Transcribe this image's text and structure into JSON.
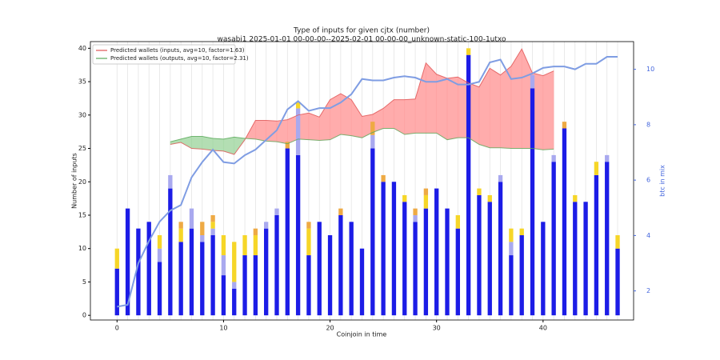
{
  "chart_data": {
    "type": "bar",
    "title": "Type of inputs for given cjtx (number)",
    "subtitle": "wasabi1 2025-01-01 00-00-00--2025-02-01 00-00-00_unknown-static-100-1utxo",
    "x_label": "Coinjoin in time",
    "y_label": "Number of inputs",
    "y2_label": "btc in mix",
    "x": [
      0,
      1,
      2,
      3,
      4,
      5,
      6,
      7,
      8,
      9,
      10,
      11,
      12,
      13,
      14,
      15,
      16,
      17,
      18,
      19,
      20,
      21,
      22,
      23,
      24,
      25,
      26,
      27,
      28,
      29,
      30,
      31,
      32,
      33,
      34,
      35,
      36,
      37,
      38,
      39,
      40,
      41,
      42,
      43,
      44,
      45,
      46,
      47
    ],
    "xlim": [
      -2.5,
      48.5
    ],
    "xticks": [
      0,
      10,
      20,
      30,
      40
    ],
    "ylim": [
      -0.7,
      41
    ],
    "yticks": [
      0,
      5,
      10,
      15,
      20,
      25,
      30,
      35,
      40
    ],
    "y2lim": [
      0.95,
      11
    ],
    "y2ticks": [
      2,
      4,
      6,
      8,
      10
    ],
    "grid": "x",
    "legend": "upper left",
    "series": [
      {
        "color": "#1c1ce6",
        "values": [
          7,
          16,
          13,
          14,
          8,
          19,
          11,
          13,
          11,
          12,
          6,
          4,
          9,
          9,
          13,
          15,
          25,
          24,
          9,
          14,
          12,
          15,
          14,
          10,
          25,
          20,
          20,
          17,
          14,
          16,
          19,
          16,
          13,
          39,
          18,
          17,
          20,
          9,
          12,
          34,
          14,
          23,
          28,
          17,
          17,
          21,
          23,
          10
        ]
      },
      {
        "color": "#a9a9ef",
        "values": [
          0,
          0,
          0,
          0,
          2,
          2,
          0,
          3,
          1,
          1,
          3,
          1,
          0,
          0,
          1,
          1,
          0,
          7,
          0,
          0,
          0,
          0,
          0,
          0,
          2,
          0,
          0,
          0,
          1,
          0,
          0,
          0,
          0,
          0,
          0,
          0,
          1,
          2,
          0,
          2,
          0,
          1,
          0,
          0,
          0,
          0,
          1,
          0
        ]
      },
      {
        "color": "#f6d628",
        "values": [
          3,
          0,
          0,
          0,
          2,
          0,
          2,
          0,
          0,
          1,
          3,
          6,
          3,
          3,
          0,
          0,
          0,
          1,
          4,
          0,
          0,
          0,
          0,
          0,
          0,
          0,
          0,
          1,
          0,
          2,
          0,
          0,
          2,
          1,
          1,
          1,
          0,
          2,
          1,
          0,
          0,
          0,
          0,
          1,
          0,
          2,
          0,
          2
        ]
      },
      {
        "color": "#eeaa44",
        "values": [
          0,
          0,
          0,
          0,
          0,
          0,
          1,
          0,
          2,
          1,
          0,
          0,
          0,
          1,
          0,
          0,
          1,
          0,
          1,
          0,
          0,
          1,
          0,
          0,
          2,
          1,
          0,
          0,
          1,
          1,
          0,
          0,
          0,
          0,
          0,
          0,
          0,
          0,
          0,
          0,
          0,
          0,
          1,
          0,
          0,
          0,
          0,
          0
        ]
      }
    ],
    "lines": [
      {
        "name": "Predicted wallets (inputs, avg=10, factor=1.63)",
        "color": "#e05555",
        "fill": "#ff9e9e",
        "x": [
          5,
          6,
          7,
          8,
          9,
          10,
          11,
          12,
          13,
          14,
          15,
          16,
          17,
          18,
          19,
          20,
          21,
          22,
          23,
          24,
          25,
          26,
          27,
          28,
          29,
          30,
          31,
          32,
          33,
          34,
          35,
          36,
          37,
          38,
          39,
          40,
          41
        ],
        "values": [
          25.6,
          25.9,
          25.0,
          24.9,
          24.7,
          24.6,
          24.1,
          26.3,
          29.2,
          29.2,
          29.1,
          29.3,
          30.0,
          30.3,
          29.7,
          32.3,
          33.2,
          32.3,
          29.8,
          30.1,
          31.0,
          32.3,
          32.3,
          32.4,
          37.8,
          36.1,
          35.5,
          35.7,
          34.8,
          34.2,
          37.0,
          36.0,
          37.3,
          39.9,
          36.3,
          35.9,
          36.6
        ]
      },
      {
        "name": "Predicted wallets (outputs, avg=10, factor=2.31)",
        "color": "#5aa95a",
        "fill": "#a6d8a6",
        "x": [
          5,
          6,
          7,
          8,
          9,
          10,
          11,
          12,
          13,
          14,
          15,
          16,
          17,
          18,
          19,
          20,
          21,
          22,
          23,
          24,
          25,
          26,
          27,
          28,
          29,
          30,
          31,
          32,
          33,
          34,
          35,
          36,
          37,
          38,
          39,
          40,
          41
        ],
        "values": [
          26.0,
          26.4,
          26.8,
          26.8,
          26.5,
          26.4,
          26.7,
          26.5,
          26.4,
          26.1,
          26.0,
          25.7,
          26.4,
          26.3,
          26.2,
          26.3,
          27.1,
          26.9,
          26.6,
          27.4,
          28.0,
          28.0,
          27.1,
          27.3,
          27.3,
          27.3,
          26.3,
          26.6,
          26.6,
          25.6,
          25.1,
          25.1,
          25.0,
          25.0,
          25.0,
          24.8,
          24.9
        ]
      }
    ],
    "btc": {
      "color": "#7f9de3",
      "axis": "y2",
      "values": [
        1.43,
        1.5,
        3.0,
        3.8,
        4.5,
        4.9,
        5.1,
        6.1,
        6.65,
        7.1,
        6.65,
        6.6,
        6.9,
        7.1,
        7.45,
        7.8,
        8.55,
        8.85,
        8.5,
        8.6,
        8.6,
        8.8,
        9.1,
        9.65,
        9.6,
        9.6,
        9.7,
        9.75,
        9.7,
        9.55,
        9.55,
        9.65,
        9.45,
        9.45,
        9.55,
        10.25,
        10.35,
        9.65,
        9.7,
        9.85,
        10.05,
        10.1,
        10.1,
        10.0,
        10.2,
        10.2,
        10.45,
        10.45
      ]
    }
  }
}
